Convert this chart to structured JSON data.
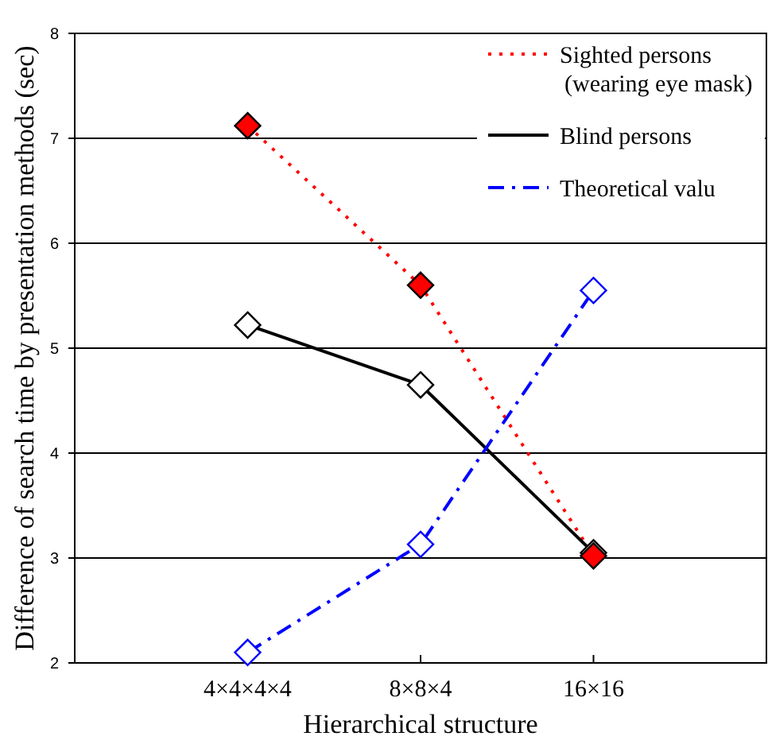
{
  "chart_data": {
    "type": "line",
    "xlabel": "Hierarchical structure",
    "ylabel": "Difference of search time by presentation methods (sec)",
    "categories": [
      "4×4×4×4",
      "8×8×4",
      "16×16"
    ],
    "series": [
      {
        "name": "Sighted persons\n(wearing eye mask)",
        "color": "#ff0000",
        "values": [
          7.12,
          5.6,
          3.02
        ],
        "line_style": "dotted"
      },
      {
        "name": "Blind persons",
        "color": "#000000",
        "values": [
          5.22,
          4.65,
          3.05
        ],
        "line_style": "solid"
      },
      {
        "name": "Theoretical valu",
        "color": "#0000ff",
        "values": [
          2.1,
          3.13,
          5.55
        ],
        "line_style": "dashed"
      }
    ],
    "ylim": [
      2,
      8
    ],
    "yticks": [
      2,
      3,
      4,
      5,
      6,
      7,
      8
    ],
    "grid": "y",
    "legend": "top right",
    "marker": "diamond"
  }
}
